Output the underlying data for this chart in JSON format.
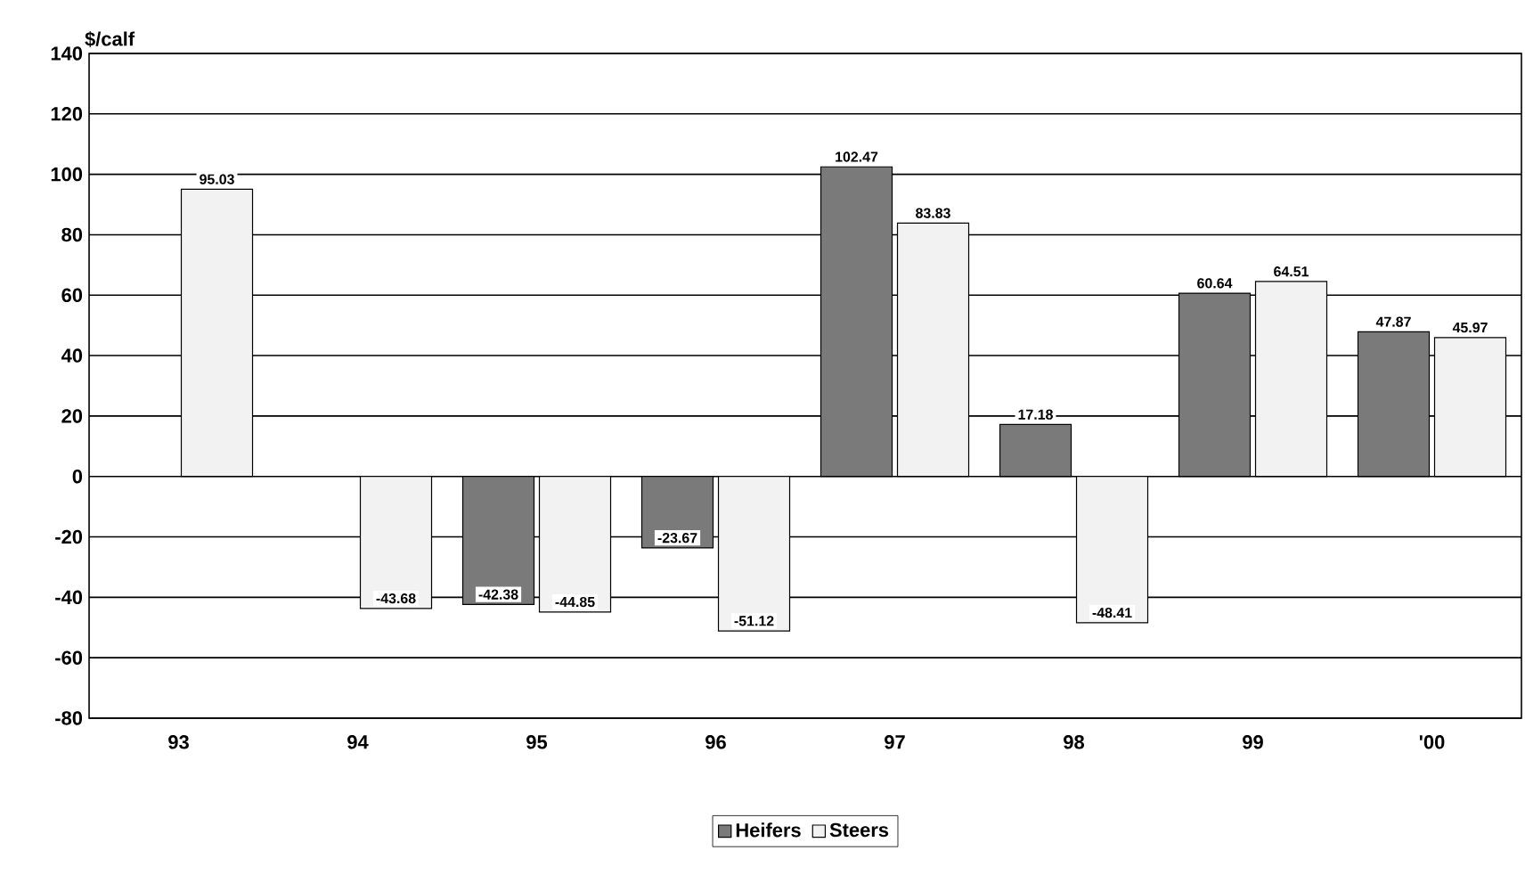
{
  "chart_data": {
    "type": "bar",
    "ylabel": "$/calf",
    "categories": [
      "93",
      "94",
      "95",
      "96",
      "97",
      "98",
      "99",
      "'00"
    ],
    "series": [
      {
        "name": "Heifers",
        "color": "#7a7a7a",
        "values": [
          null,
          null,
          -42.38,
          -23.67,
          102.47,
          17.18,
          60.64,
          47.87
        ]
      },
      {
        "name": "Steers",
        "color": "#f2f2f2",
        "values": [
          95.03,
          -43.68,
          -44.85,
          -51.12,
          83.83,
          -48.41,
          64.51,
          45.97
        ]
      }
    ],
    "ylim": [
      -80,
      140
    ],
    "yticks": [
      -80,
      -60,
      -40,
      -20,
      0,
      20,
      40,
      60,
      80,
      100,
      120,
      140
    ],
    "grid": "y",
    "legend": "bottom",
    "data_labels": true
  }
}
